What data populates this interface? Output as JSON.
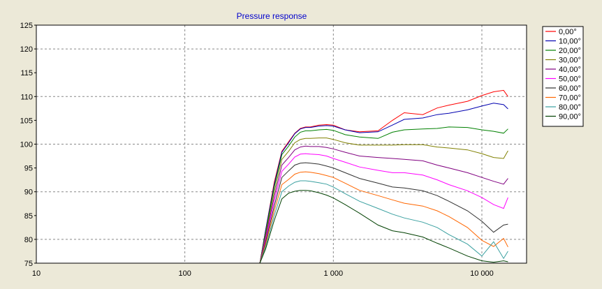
{
  "chart_data": {
    "type": "line",
    "title": "Pressure response",
    "xscale": "log",
    "xlim": [
      10,
      20000
    ],
    "ylim": [
      75,
      125
    ],
    "grid": true,
    "legend_position": "right",
    "x_ticks": [
      10,
      100,
      1000,
      10000
    ],
    "x_tick_labels": [
      "10",
      "100",
      "1 000",
      "10 000"
    ],
    "y_ticks": [
      75,
      80,
      85,
      90,
      95,
      100,
      105,
      110,
      115,
      120,
      125
    ],
    "x": [
      320,
      350,
      400,
      450,
      500,
      550,
      600,
      650,
      700,
      800,
      900,
      1000,
      1200,
      1500,
      2000,
      2500,
      3000,
      4000,
      5000,
      6000,
      8000,
      10000,
      12000,
      14000,
      15000
    ],
    "series": [
      {
        "name": "0,00°",
        "color": "#ff0000",
        "values": [
          75,
          82,
          92,
          98.5,
          100.5,
          102.3,
          103.3,
          103.6,
          103.6,
          104.0,
          104.1,
          104.0,
          103.0,
          102.6,
          102.8,
          105.0,
          106.6,
          106.2,
          107.6,
          108.2,
          109.0,
          110.2,
          111.0,
          111.3,
          110.0
        ]
      },
      {
        "name": "10,00°",
        "color": "#0000b0",
        "values": [
          75,
          82,
          91.5,
          98.3,
          100.3,
          102.2,
          103.2,
          103.5,
          103.5,
          103.8,
          103.9,
          103.8,
          103.0,
          102.4,
          102.6,
          104.0,
          105.2,
          105.5,
          106.2,
          106.5,
          107.2,
          108.0,
          108.6,
          108.3,
          107.4
        ]
      },
      {
        "name": "20,00°",
        "color": "#008000",
        "values": [
          75,
          81.5,
          91,
          97.8,
          99.6,
          101.5,
          102.5,
          102.8,
          102.8,
          103.0,
          103.1,
          102.9,
          102.0,
          101.5,
          101.2,
          102.5,
          103.0,
          103.2,
          103.3,
          103.6,
          103.5,
          103.0,
          102.7,
          102.3,
          103.2
        ]
      },
      {
        "name": "30,00°",
        "color": "#808000",
        "values": [
          75,
          81,
          90,
          96.8,
          98.5,
          100.3,
          101.0,
          101.2,
          101.2,
          101.3,
          101.3,
          101.0,
          100.3,
          99.8,
          99.8,
          99.8,
          99.9,
          99.9,
          99.4,
          99.2,
          98.8,
          98.0,
          97.2,
          97.0,
          98.6
        ]
      },
      {
        "name": "40,00°",
        "color": "#800080",
        "values": [
          75,
          80.5,
          89,
          95.6,
          97.2,
          98.8,
          99.4,
          99.6,
          99.5,
          99.5,
          99.3,
          99.0,
          98.3,
          97.5,
          97.2,
          97.0,
          96.8,
          96.5,
          95.6,
          95.0,
          94.0,
          93.0,
          92.2,
          91.6,
          92.8
        ]
      },
      {
        "name": "50,00°",
        "color": "#ff00ff",
        "values": [
          75,
          80,
          88,
          94.3,
          95.8,
          97.3,
          97.9,
          98.0,
          97.9,
          97.8,
          97.5,
          97.0,
          96.2,
          95.2,
          94.5,
          94.0,
          94.0,
          93.5,
          92.5,
          91.5,
          90.2,
          88.8,
          87.3,
          86.5,
          88.8
        ]
      },
      {
        "name": "60,00°",
        "color": "#303030",
        "values": [
          75,
          79.5,
          87,
          93.0,
          94.4,
          95.6,
          96.0,
          96.1,
          96.0,
          95.8,
          95.4,
          95.0,
          94.0,
          92.8,
          91.8,
          91.0,
          90.8,
          90.2,
          89.2,
          88.0,
          86.0,
          83.8,
          81.5,
          83.0,
          83.2
        ]
      },
      {
        "name": "70,00°",
        "color": "#ff6600",
        "values": [
          75,
          79,
          86,
          91.5,
          92.6,
          93.7,
          94.1,
          94.2,
          94.1,
          93.8,
          93.4,
          93.0,
          91.8,
          90.3,
          89.2,
          88.3,
          87.6,
          87.0,
          86.0,
          84.8,
          82.5,
          79.8,
          78.5,
          80.2,
          78.4
        ]
      },
      {
        "name": "80,00°",
        "color": "#3aa0a0",
        "values": [
          75,
          78.5,
          85,
          90.0,
          91.2,
          92.0,
          92.3,
          92.3,
          92.2,
          91.9,
          91.6,
          91.0,
          89.6,
          88.0,
          86.5,
          85.3,
          84.5,
          83.6,
          82.5,
          81.0,
          79.0,
          76.5,
          79.5,
          76.0,
          77.5
        ]
      },
      {
        "name": "90,00°",
        "color": "#004000",
        "values": [
          75,
          78,
          84,
          88.5,
          89.7,
          90.1,
          90.3,
          90.3,
          90.2,
          89.8,
          89.3,
          88.7,
          87.3,
          85.5,
          83.0,
          81.8,
          81.4,
          80.5,
          79.2,
          78.2,
          76.5,
          75.5,
          75.2,
          75.5,
          75.3
        ]
      }
    ]
  }
}
